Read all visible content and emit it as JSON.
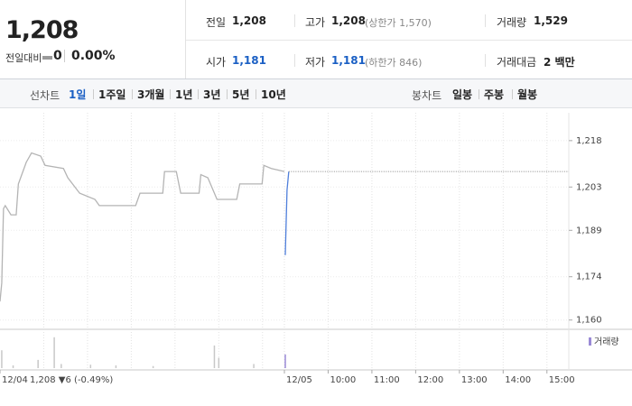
{
  "quote": {
    "price": "1,208",
    "change_label": "전일대비",
    "change": "0",
    "change_pct": "0.00%",
    "items": [
      {
        "label": "전일",
        "value": "1,208"
      },
      {
        "label": "고가",
        "value": "1,208",
        "note": "(상한가 1,570)"
      },
      {
        "label": "거래량",
        "value": "1,529"
      },
      {
        "label": "시가",
        "value": "1,181"
      },
      {
        "label": "저가",
        "value": "1,181",
        "note": "(하한가 846)"
      },
      {
        "label": "거래대금",
        "value": "2 백만"
      }
    ]
  },
  "tabs": {
    "line_label": "선차트",
    "line": [
      "1일",
      "1주일",
      "3개월",
      "1년",
      "3년",
      "5년",
      "10년"
    ],
    "candle_label": "봉차트",
    "candle": [
      "일봉",
      "주봉",
      "월봉"
    ]
  },
  "chart_data": {
    "type": "line",
    "series": [
      {
        "color": "#b4b4b4",
        "x": [
          0,
          0.04,
          0.08,
          0.12,
          0.25,
          0.37,
          0.42,
          0.6,
          0.72,
          0.93,
          1.03,
          1.45,
          1.55,
          1.82,
          2.17,
          2.27,
          3.1,
          3.2,
          3.72,
          3.76,
          4.03,
          4.13,
          4.55,
          4.59,
          4.75,
          4.96,
          5.41,
          5.48,
          5.99,
          6.03,
          6.2,
          6.5
        ],
        "values": [
          1166,
          1172,
          1196,
          1197,
          1194,
          1194,
          1204,
          1211,
          1214,
          1213,
          1210,
          1209,
          1206,
          1201,
          1199,
          1197,
          1197,
          1201,
          1201,
          1208,
          1208,
          1201,
          1201,
          1207,
          1206,
          1199,
          1199,
          1204,
          1204,
          1210,
          1209,
          1208
        ]
      },
      {
        "color": "#4f7fdb",
        "x": [
          6.52,
          6.56,
          6.6
        ],
        "values": [
          1181,
          1202,
          1208
        ]
      },
      {
        "color": "#888888",
        "dashed": true,
        "x": [
          6.6,
          13
        ],
        "values": [
          1208,
          1208
        ]
      }
    ],
    "xlim": [
      0,
      13
    ],
    "ylim": [
      1157,
      1227
    ],
    "yticks": [
      {
        "value": 1218,
        "label": "1,218"
      },
      {
        "value": 1203,
        "label": "1,203"
      },
      {
        "value": 1189,
        "label": "1,189"
      },
      {
        "value": 1174,
        "label": "1,174"
      },
      {
        "value": 1160,
        "label": "1,160"
      }
    ],
    "xticks": [
      {
        "value": 0,
        "label": "12/04"
      },
      {
        "value": 6.5,
        "label": "12/05"
      },
      {
        "value": 7.5,
        "label": "10:00"
      },
      {
        "value": 8.5,
        "label": "11:00"
      },
      {
        "value": 9.5,
        "label": "12:00"
      },
      {
        "value": 10.5,
        "label": "13:00"
      },
      {
        "value": 11.5,
        "label": "14:00"
      },
      {
        "value": 12.5,
        "label": "15:00"
      }
    ],
    "xgrid": [
      1,
      2,
      3,
      4,
      5,
      6,
      6.5,
      7.5,
      8.5,
      9.5,
      10.5,
      11.5,
      12.5
    ],
    "grid": true,
    "prev_close_label": "1,208 ▼6 (-0.49%)",
    "volume": {
      "name": "거래량",
      "color": "#9a8ad6",
      "vlim": [
        0,
        500
      ],
      "x": [
        0.04,
        0.3,
        0.87,
        1.24,
        1.4,
        2.07,
        2.65,
        3.5,
        4.9,
        5.0,
        5.8,
        6.52
      ],
      "values": [
        260,
        40,
        120,
        450,
        60,
        50,
        40,
        30,
        330,
        150,
        60,
        200
      ],
      "colors": [
        "#c8c8c8",
        "#c8c8c8",
        "#c8c8c8",
        "#c8c8c8",
        "#c8c8c8",
        "#c8c8c8",
        "#c8c8c8",
        "#c8c8c8",
        "#c8c8c8",
        "#c8c8c8",
        "#c8c8c8",
        "#9a8ad6"
      ]
    }
  }
}
